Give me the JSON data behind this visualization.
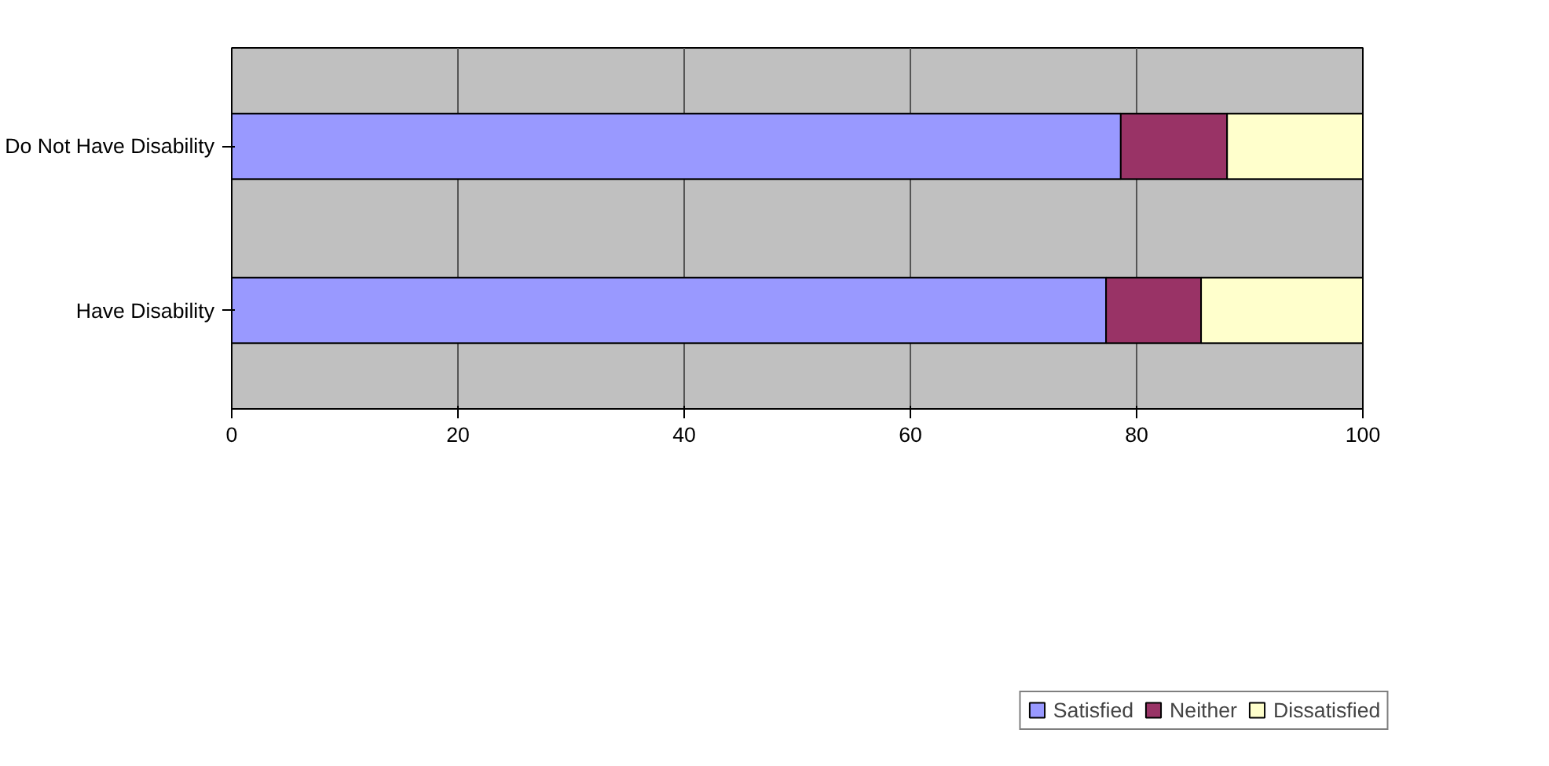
{
  "chart_data": {
    "type": "bar",
    "orientation": "horizontal",
    "stacked": true,
    "categories": [
      "Do Not Have Disability",
      "Have Disability"
    ],
    "series": [
      {
        "name": "Satisfied",
        "color": "#9999ff",
        "values": [
          78.6,
          77.3
        ]
      },
      {
        "name": "Neither",
        "color": "#993366",
        "values": [
          9.4,
          8.4
        ]
      },
      {
        "name": "Dissatisfied",
        "color": "#ffffcc",
        "values": [
          12,
          14.3
        ]
      }
    ],
    "xlim": [
      0,
      100
    ],
    "xticks": [
      0,
      20,
      40,
      60,
      80,
      100
    ],
    "grid": "x",
    "legend": "bottom"
  }
}
